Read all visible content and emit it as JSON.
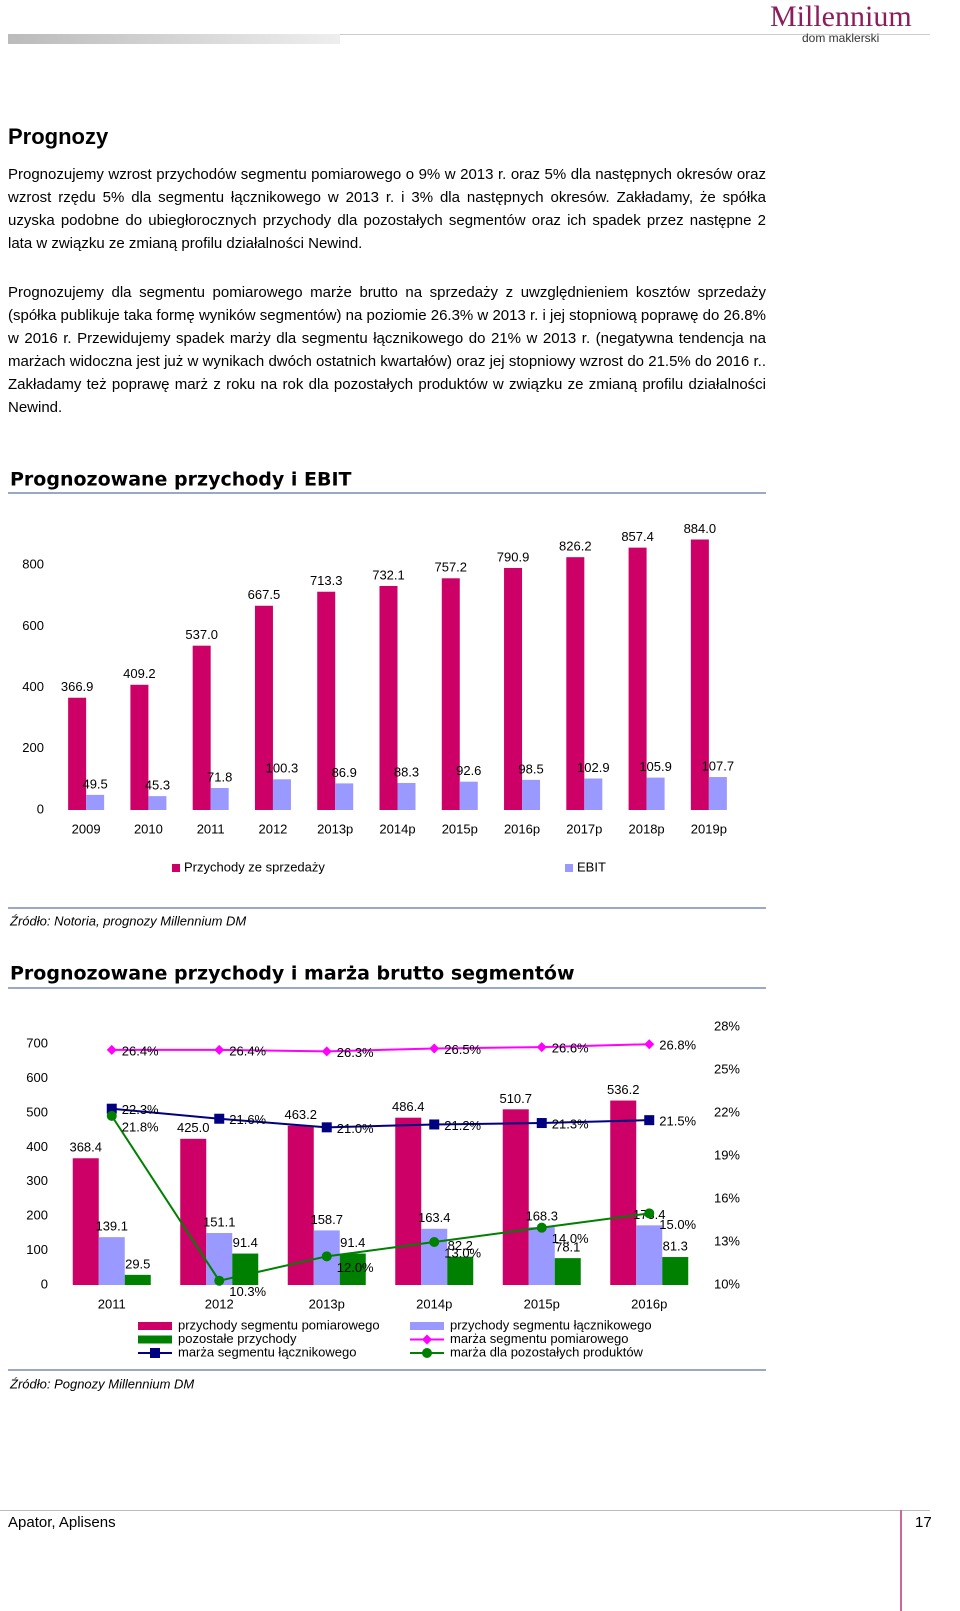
{
  "header": {
    "logo": "Millennium",
    "logo_sub": "dom maklerski"
  },
  "section_title": "Prognozy",
  "paragraphs": [
    "Prognozujemy wzrost przychodów segmentu pomiarowego o 9% w 2013 r. oraz 5% dla następnych okresów oraz wzrost rzędu 5% dla segmentu łącznikowego w 2013 r. i 3% dla następnych okresów. Zakładamy, że spółka uzyska podobne do ubiegłorocznych przychody dla pozostałych segmentów oraz ich spadek przez następne 2 lata w związku ze zmianą profilu działalności Newind.",
    "Prognozujemy dla segmentu pomiarowego marże brutto na sprzedaży z uwzględnieniem kosztów sprzedaży (spółka publikuje taka formę wyników segmentów) na poziomie 26.3% w 2013 r. i jej stopniową poprawę do 26.8% w 2016 r. Przewidujemy spadek marży dla segmentu łącznikowego do 21% w 2013 r. (negatywna tendencja na marżach widoczna jest już w wynikach dwóch ostatnich kwartałów) oraz jej stopniowy wzrost do 21.5% do 2016 r.. Zakładamy też poprawę marż z roku na rok dla pozostałych produktów w związku ze zmianą profilu działalności Newind."
  ],
  "chart_data": [
    {
      "type": "bar",
      "title": "Prognozowane przychody i EBIT",
      "categories": [
        "2009",
        "2010",
        "2011",
        "2012",
        "2013p",
        "2014p",
        "2015p",
        "2016p",
        "2017p",
        "2018p",
        "2019p"
      ],
      "series": [
        {
          "name": "Przychody ze sprzedaży",
          "color": "#cc0066",
          "values": [
            366.9,
            409.2,
            537.0,
            667.5,
            713.3,
            732.1,
            757.2,
            790.9,
            826.2,
            857.4,
            884.0
          ],
          "value_labels": [
            "366.9",
            "409.2",
            "537.0",
            "667.5",
            "713.3",
            "732.1",
            "757.2",
            "790.9",
            "826.2",
            "857.4",
            "884.0"
          ]
        },
        {
          "name": "EBIT",
          "color": "#9999ff",
          "values": [
            49.5,
            45.3,
            71.8,
            100.3,
            86.9,
            88.3,
            92.6,
            98.5,
            102.9,
            105.9,
            107.7
          ],
          "value_labels": [
            "49.5",
            "45.3",
            "71.8",
            "100.3",
            "86.9",
            "88.3",
            "92.6",
            "98.5",
            "102.9",
            "105.9",
            "107.7"
          ]
        }
      ],
      "ylim": [
        0,
        1000
      ],
      "yticks": [
        0,
        200,
        400,
        600,
        800
      ],
      "grid": false,
      "legend": "bottom",
      "source": "Źródło: Notoria, prognozy Millennium DM"
    },
    {
      "type": "combo",
      "title": "Prognozowane przychody i marża brutto segmentów",
      "categories": [
        "2011",
        "2012",
        "2013p",
        "2014p",
        "2015p",
        "2016p"
      ],
      "series": [
        {
          "name": "przychody segmentu pomiarowego",
          "type": "bar",
          "color": "#cc0066",
          "values": [
            368.4,
            425.0,
            463.2,
            486.4,
            510.7,
            536.2
          ],
          "value_labels": [
            "368.4",
            "425.0",
            "463.2",
            "486.4",
            "510.7",
            "536.2"
          ]
        },
        {
          "name": "przychody segmentu łącznikowego",
          "type": "bar",
          "color": "#9999ff",
          "values": [
            139.1,
            151.1,
            158.7,
            163.4,
            168.3,
            173.4
          ],
          "value_labels": [
            "139.1",
            "151.1",
            "158.7",
            "163.4",
            "168.3",
            "173.4"
          ]
        },
        {
          "name": "pozostałe przychody",
          "type": "bar",
          "color": "#008000",
          "values": [
            29.5,
            91.4,
            91.4,
            82.2,
            78.1,
            81.3
          ],
          "value_labels": [
            "29.5",
            "91.4",
            "91.4",
            "82.2",
            "78.1",
            "81.3"
          ]
        },
        {
          "name": "marża segmentu pomiarowego",
          "type": "line",
          "axis": "y2",
          "color": "#ff00ff",
          "marker": "diamond",
          "values": [
            26.4,
            26.4,
            26.3,
            26.5,
            26.6,
            26.8
          ],
          "value_labels": [
            "26.4%",
            "26.4%",
            "26.3%",
            "26.5%",
            "26.6%",
            "26.8%"
          ]
        },
        {
          "name": "marża segmentu łącznikowego",
          "type": "line",
          "axis": "y2",
          "color": "#000080",
          "marker": "square",
          "values": [
            22.3,
            21.6,
            21.0,
            21.2,
            21.3,
            21.5
          ],
          "value_labels": [
            "22.3%",
            "21.6%",
            "21.0%",
            "21.2%",
            "21.3%",
            "21.5%"
          ]
        },
        {
          "name": "marża dla pozostałych produktów",
          "type": "line",
          "axis": "y2",
          "color": "#008000",
          "marker": "circle",
          "values": [
            21.8,
            10.3,
            12.0,
            13.0,
            14.0,
            15.0
          ],
          "value_labels": [
            "21.8%",
            "10.3%",
            "12.0%",
            "13.0%",
            "14.0%",
            "15.0%"
          ]
        }
      ],
      "ylim": [
        0,
        750
      ],
      "yticks": [
        0,
        100,
        200,
        300,
        400,
        500,
        600,
        700
      ],
      "y2lim": [
        10,
        28
      ],
      "y2ticks": [
        {
          "value": 10,
          "label": "10%"
        },
        {
          "value": 13,
          "label": "13%"
        },
        {
          "value": 16,
          "label": "16%"
        },
        {
          "value": 19,
          "label": "19%"
        },
        {
          "value": 22,
          "label": "22%"
        },
        {
          "value": 25,
          "label": "25%"
        },
        {
          "value": 28,
          "label": "28%"
        }
      ],
      "grid": false,
      "legend": "bottom",
      "source": "Źródło: Pognozy Millennium DM"
    }
  ],
  "footer": {
    "left": "Apator, Aplisens",
    "page": 17
  }
}
